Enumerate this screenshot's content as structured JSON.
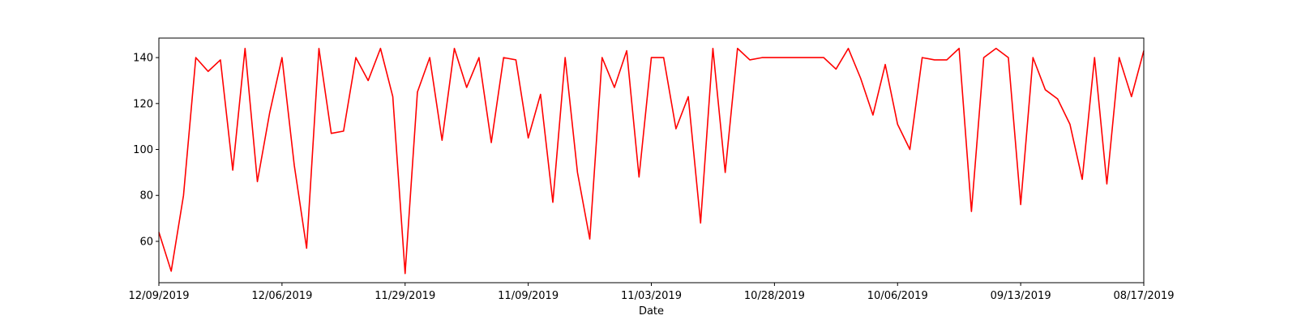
{
  "chart_data": {
    "type": "line",
    "title": "",
    "xlabel": "Date",
    "ylabel": "",
    "ylim": [
      42,
      148.5
    ],
    "grid": false,
    "legend": "none",
    "y_ticks": [
      60,
      80,
      100,
      120,
      140
    ],
    "x_tick_labels": [
      "12/09/2019",
      "12/06/2019",
      "11/29/2019",
      "11/09/2019",
      "11/03/2019",
      "10/28/2019",
      "10/06/2019",
      "09/13/2019",
      "08/17/2019"
    ],
    "x_tick_indices": [
      0,
      10,
      20,
      30,
      40,
      50,
      60,
      70,
      80
    ],
    "series": [
      {
        "color": "#ff0000",
        "values": [
          64,
          47,
          80,
          140,
          134,
          139,
          91,
          144,
          86,
          116,
          140,
          93,
          57,
          144,
          107,
          108,
          140,
          130,
          144,
          123,
          46,
          125,
          140,
          104,
          144,
          127,
          140,
          103,
          140,
          139,
          105,
          124,
          77,
          140,
          90,
          61,
          140,
          127,
          143,
          88,
          140,
          140,
          109,
          123,
          68,
          144,
          90,
          144,
          139,
          140,
          140,
          140,
          140,
          140,
          140,
          135,
          144,
          131,
          115,
          137,
          111,
          100,
          140,
          139,
          139,
          144,
          73,
          140,
          144,
          140,
          76,
          140,
          126,
          122,
          111,
          87,
          140,
          85,
          140,
          123,
          143
        ]
      }
    ]
  }
}
